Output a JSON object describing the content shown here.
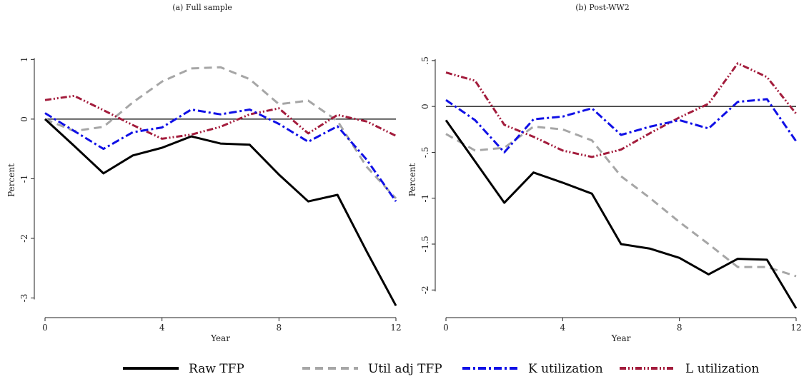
{
  "legend": {
    "placement": "bottom",
    "items": [
      {
        "label": "Raw TFP",
        "color": "#000000",
        "dash": "solid"
      },
      {
        "label": "Util adj TFP",
        "color": "#a6a6a6",
        "dash": "dash"
      },
      {
        "label": "K utilization",
        "color": "#1010e6",
        "dash": "dashdot"
      },
      {
        "label": "L utilization",
        "color": "#a31c3c",
        "dash": "dashdotdot"
      }
    ]
  },
  "chart_data": [
    {
      "type": "line",
      "title": "(a) Full sample",
      "xlabel": "Year",
      "ylabel": "Percent",
      "xlim": [
        0,
        12
      ],
      "ylim": [
        -3.15,
        1.1
      ],
      "xticks": [
        0,
        4,
        8,
        12
      ],
      "xtick_labels": [
        "0",
        "4",
        "8",
        "12"
      ],
      "yticks": [
        1,
        0,
        -1,
        -2,
        -3
      ],
      "ytick_labels": [
        "1",
        "0",
        "-1",
        "-2",
        "-3"
      ],
      "zero_line": true,
      "grid": false,
      "x": [
        0,
        1,
        2,
        3,
        4,
        5,
        6,
        7,
        8,
        9,
        10,
        11,
        12
      ],
      "series": [
        {
          "name": "Raw TFP",
          "values": [
            0,
            -0.45,
            -0.91,
            -0.61,
            -0.48,
            -0.29,
            -0.41,
            -0.43,
            -0.93,
            -1.38,
            -1.27,
            -2.22,
            -3.13
          ]
        },
        {
          "name": "Util adj TFP",
          "values": [
            0,
            -0.2,
            -0.13,
            0.28,
            0.63,
            0.85,
            0.87,
            0.67,
            0.25,
            0.31,
            -0.03,
            -0.8,
            -1.33
          ]
        },
        {
          "name": "K utilization",
          "values": [
            0.1,
            -0.2,
            -0.5,
            -0.22,
            -0.14,
            0.16,
            0.08,
            0.16,
            -0.08,
            -0.38,
            -0.12,
            -0.68,
            -1.38
          ]
        },
        {
          "name": "L utilization",
          "values": [
            0.32,
            0.39,
            0.15,
            -0.1,
            -0.33,
            -0.26,
            -0.13,
            0.08,
            0.18,
            -0.24,
            0.07,
            -0.04,
            -0.28
          ]
        }
      ]
    },
    {
      "type": "line",
      "title": "(b) Post-WW2",
      "xlabel": "Year",
      "ylabel": "Percent",
      "xlim": [
        0,
        12
      ],
      "ylim": [
        -2.2,
        0.6
      ],
      "xticks": [
        0,
        4,
        8,
        12
      ],
      "xtick_labels": [
        "0",
        "4",
        "8",
        "12"
      ],
      "yticks": [
        0.5,
        0,
        -0.5,
        -1,
        -1.5,
        -2
      ],
      "ytick_labels": [
        ".5",
        "0",
        "-.5",
        "-1",
        "-1.5",
        "-2"
      ],
      "zero_line": true,
      "grid": false,
      "x": [
        0,
        1,
        2,
        3,
        4,
        5,
        6,
        7,
        8,
        9,
        10,
        11,
        12
      ],
      "series": [
        {
          "name": "Raw TFP",
          "values": [
            -0.15,
            -0.6,
            -1.05,
            -0.72,
            -0.83,
            -0.95,
            -1.5,
            -1.55,
            -1.65,
            -1.83,
            -1.66,
            -1.67,
            -2.2
          ]
        },
        {
          "name": "Util adj TFP",
          "values": [
            -0.3,
            -0.48,
            -0.45,
            -0.22,
            -0.25,
            -0.37,
            -0.76,
            -1.0,
            -1.26,
            -1.5,
            -1.75,
            -1.75,
            -1.85
          ]
        },
        {
          "name": "K utilization",
          "values": [
            0.07,
            -0.15,
            -0.5,
            -0.14,
            -0.11,
            -0.02,
            -0.31,
            -0.22,
            -0.15,
            -0.24,
            0.05,
            0.08,
            -0.38
          ]
        },
        {
          "name": "L utilization",
          "values": [
            0.37,
            0.28,
            -0.2,
            -0.33,
            -0.48,
            -0.55,
            -0.47,
            -0.29,
            -0.12,
            0.03,
            0.47,
            0.32,
            -0.08
          ]
        }
      ]
    }
  ]
}
